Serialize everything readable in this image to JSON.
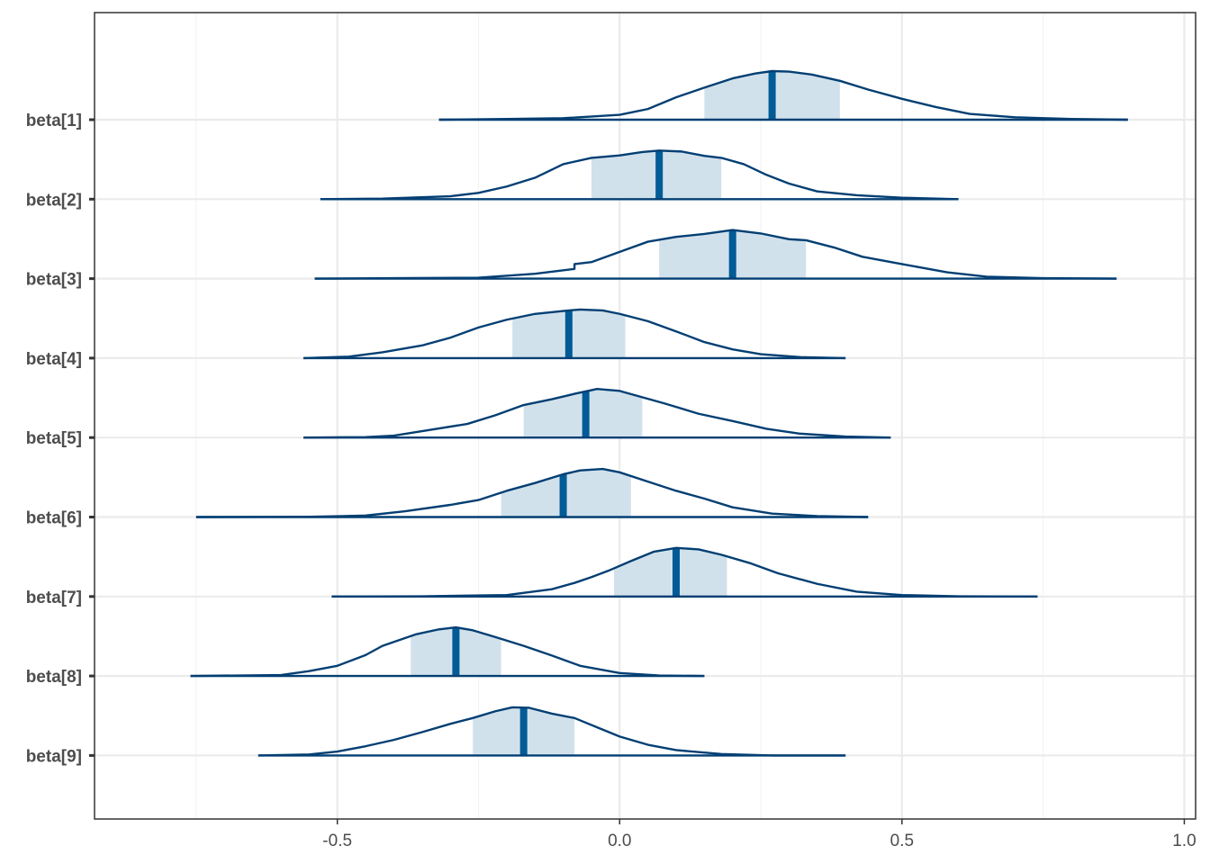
{
  "chart_data": {
    "type": "ridgeline",
    "title": "",
    "xlabel": "",
    "ylabel": "",
    "xlim": [
      -0.93,
      1.02
    ],
    "x_ticks": [
      -0.5,
      0.0,
      0.5,
      1.0
    ],
    "x_tick_labels": [
      "-0.5",
      "0.0",
      "0.5",
      "1.0"
    ],
    "grid": true,
    "colors": {
      "outline": "#033f73",
      "interval_fill": "#d1e1ec",
      "median_line": "#005b96",
      "grid_major": "#ebebeb",
      "grid_minor": "#f3f3f3",
      "panel_border": "#333333",
      "tick_text": "#4d4d4d"
    },
    "series": [
      {
        "name": "beta[1]",
        "median": 0.27,
        "interval": [
          0.15,
          0.39
        ],
        "density": [
          [
            -0.32,
            0.0
          ],
          [
            -0.2,
            0.015
          ],
          [
            -0.1,
            0.03
          ],
          [
            0.0,
            0.1
          ],
          [
            0.05,
            0.22
          ],
          [
            0.1,
            0.46
          ],
          [
            0.15,
            0.66
          ],
          [
            0.2,
            0.85
          ],
          [
            0.24,
            0.95
          ],
          [
            0.27,
            1.0
          ],
          [
            0.3,
            0.99
          ],
          [
            0.34,
            0.93
          ],
          [
            0.39,
            0.8
          ],
          [
            0.44,
            0.62
          ],
          [
            0.5,
            0.43
          ],
          [
            0.56,
            0.26
          ],
          [
            0.62,
            0.12
          ],
          [
            0.7,
            0.05
          ],
          [
            0.8,
            0.015
          ],
          [
            0.9,
            0.0
          ]
        ]
      },
      {
        "name": "beta[2]",
        "median": 0.07,
        "interval": [
          -0.05,
          0.18
        ],
        "density": [
          [
            -0.53,
            0.0
          ],
          [
            -0.42,
            0.01
          ],
          [
            -0.3,
            0.06
          ],
          [
            -0.25,
            0.13
          ],
          [
            -0.2,
            0.26
          ],
          [
            -0.15,
            0.44
          ],
          [
            -0.1,
            0.72
          ],
          [
            -0.05,
            0.85
          ],
          [
            0.0,
            0.9
          ],
          [
            0.04,
            0.97
          ],
          [
            0.07,
            1.0
          ],
          [
            0.11,
            0.98
          ],
          [
            0.15,
            0.89
          ],
          [
            0.18,
            0.85
          ],
          [
            0.22,
            0.72
          ],
          [
            0.26,
            0.5
          ],
          [
            0.3,
            0.32
          ],
          [
            0.35,
            0.16
          ],
          [
            0.42,
            0.08
          ],
          [
            0.5,
            0.03
          ],
          [
            0.6,
            0.0
          ]
        ]
      },
      {
        "name": "beta[3]",
        "median": 0.2,
        "interval": [
          0.07,
          0.33
        ],
        "density": [
          [
            -0.54,
            0.0
          ],
          [
            -0.4,
            0.01
          ],
          [
            -0.25,
            0.02
          ],
          [
            -0.15,
            0.1
          ],
          [
            -0.08,
            0.2
          ],
          [
            -0.08,
            0.2
          ],
          [
            -0.08,
            0.3
          ],
          [
            -0.05,
            0.34
          ],
          [
            0.0,
            0.55
          ],
          [
            0.05,
            0.76
          ],
          [
            0.1,
            0.86
          ],
          [
            0.15,
            0.92
          ],
          [
            0.2,
            1.0
          ],
          [
            0.25,
            0.93
          ],
          [
            0.3,
            0.81
          ],
          [
            0.33,
            0.79
          ],
          [
            0.38,
            0.64
          ],
          [
            0.43,
            0.45
          ],
          [
            0.5,
            0.3
          ],
          [
            0.58,
            0.13
          ],
          [
            0.65,
            0.04
          ],
          [
            0.75,
            0.01
          ],
          [
            0.88,
            0.0
          ]
        ]
      },
      {
        "name": "beta[4]",
        "median": -0.09,
        "interval": [
          -0.19,
          0.01
        ],
        "density": [
          [
            -0.56,
            0.0
          ],
          [
            -0.48,
            0.03
          ],
          [
            -0.42,
            0.12
          ],
          [
            -0.35,
            0.26
          ],
          [
            -0.3,
            0.42
          ],
          [
            -0.25,
            0.63
          ],
          [
            -0.2,
            0.79
          ],
          [
            -0.15,
            0.91
          ],
          [
            -0.1,
            0.97
          ],
          [
            -0.07,
            1.0
          ],
          [
            -0.03,
            0.98
          ],
          [
            0.0,
            0.91
          ],
          [
            0.05,
            0.76
          ],
          [
            0.1,
            0.55
          ],
          [
            0.15,
            0.33
          ],
          [
            0.2,
            0.18
          ],
          [
            0.25,
            0.08
          ],
          [
            0.32,
            0.02
          ],
          [
            0.4,
            0.0
          ]
        ]
      },
      {
        "name": "beta[5]",
        "median": -0.06,
        "interval": [
          -0.17,
          0.04
        ],
        "density": [
          [
            -0.56,
            0.0
          ],
          [
            -0.45,
            0.01
          ],
          [
            -0.4,
            0.04
          ],
          [
            -0.33,
            0.17
          ],
          [
            -0.27,
            0.28
          ],
          [
            -0.22,
            0.46
          ],
          [
            -0.17,
            0.67
          ],
          [
            -0.12,
            0.79
          ],
          [
            -0.08,
            0.9
          ],
          [
            -0.04,
            1.0
          ],
          [
            0.0,
            0.96
          ],
          [
            0.04,
            0.83
          ],
          [
            0.08,
            0.7
          ],
          [
            0.14,
            0.49
          ],
          [
            0.2,
            0.34
          ],
          [
            0.26,
            0.18
          ],
          [
            0.32,
            0.08
          ],
          [
            0.4,
            0.02
          ],
          [
            0.48,
            0.0
          ]
        ]
      },
      {
        "name": "beta[6]",
        "median": -0.1,
        "interval": [
          -0.21,
          0.02
        ],
        "density": [
          [
            -0.75,
            0.0
          ],
          [
            -0.55,
            0.005
          ],
          [
            -0.45,
            0.03
          ],
          [
            -0.38,
            0.12
          ],
          [
            -0.3,
            0.25
          ],
          [
            -0.25,
            0.35
          ],
          [
            -0.2,
            0.54
          ],
          [
            -0.15,
            0.7
          ],
          [
            -0.1,
            0.88
          ],
          [
            -0.07,
            0.96
          ],
          [
            -0.03,
            0.99
          ],
          [
            0.0,
            0.92
          ],
          [
            0.05,
            0.73
          ],
          [
            0.1,
            0.54
          ],
          [
            0.15,
            0.38
          ],
          [
            0.2,
            0.2
          ],
          [
            0.27,
            0.07
          ],
          [
            0.35,
            0.02
          ],
          [
            0.44,
            0.0
          ]
        ]
      },
      {
        "name": "beta[7]",
        "median": 0.1,
        "interval": [
          -0.01,
          0.19
        ],
        "density": [
          [
            -0.51,
            0.0
          ],
          [
            -0.35,
            0.005
          ],
          [
            -0.2,
            0.03
          ],
          [
            -0.12,
            0.15
          ],
          [
            -0.08,
            0.28
          ],
          [
            -0.05,
            0.4
          ],
          [
            -0.02,
            0.53
          ],
          [
            0.02,
            0.73
          ],
          [
            0.06,
            0.92
          ],
          [
            0.1,
            1.0
          ],
          [
            0.14,
            0.97
          ],
          [
            0.18,
            0.86
          ],
          [
            0.23,
            0.69
          ],
          [
            0.28,
            0.48
          ],
          [
            0.35,
            0.26
          ],
          [
            0.42,
            0.1
          ],
          [
            0.5,
            0.03
          ],
          [
            0.6,
            0.005
          ],
          [
            0.74,
            0.0
          ]
        ]
      },
      {
        "name": "beta[8]",
        "median": -0.29,
        "interval": [
          -0.37,
          -0.21
        ],
        "density": [
          [
            -0.76,
            0.0
          ],
          [
            -0.6,
            0.02
          ],
          [
            -0.55,
            0.1
          ],
          [
            -0.5,
            0.21
          ],
          [
            -0.45,
            0.43
          ],
          [
            -0.42,
            0.62
          ],
          [
            -0.39,
            0.74
          ],
          [
            -0.36,
            0.86
          ],
          [
            -0.32,
            0.96
          ],
          [
            -0.29,
            1.0
          ],
          [
            -0.26,
            0.94
          ],
          [
            -0.22,
            0.8
          ],
          [
            -0.17,
            0.62
          ],
          [
            -0.12,
            0.42
          ],
          [
            -0.07,
            0.21
          ],
          [
            0.0,
            0.06
          ],
          [
            0.07,
            0.01
          ],
          [
            0.15,
            0.0
          ]
        ]
      },
      {
        "name": "beta[9]",
        "median": -0.17,
        "interval": [
          -0.26,
          -0.08
        ],
        "density": [
          [
            -0.64,
            0.0
          ],
          [
            -0.55,
            0.02
          ],
          [
            -0.5,
            0.08
          ],
          [
            -0.45,
            0.19
          ],
          [
            -0.4,
            0.32
          ],
          [
            -0.35,
            0.48
          ],
          [
            -0.3,
            0.65
          ],
          [
            -0.26,
            0.77
          ],
          [
            -0.22,
            0.91
          ],
          [
            -0.19,
            0.99
          ],
          [
            -0.16,
            0.98
          ],
          [
            -0.12,
            0.86
          ],
          [
            -0.08,
            0.77
          ],
          [
            -0.04,
            0.58
          ],
          [
            0.0,
            0.39
          ],
          [
            0.05,
            0.22
          ],
          [
            0.1,
            0.11
          ],
          [
            0.18,
            0.03
          ],
          [
            0.27,
            0.0
          ],
          [
            0.4,
            0.0
          ]
        ]
      }
    ]
  }
}
